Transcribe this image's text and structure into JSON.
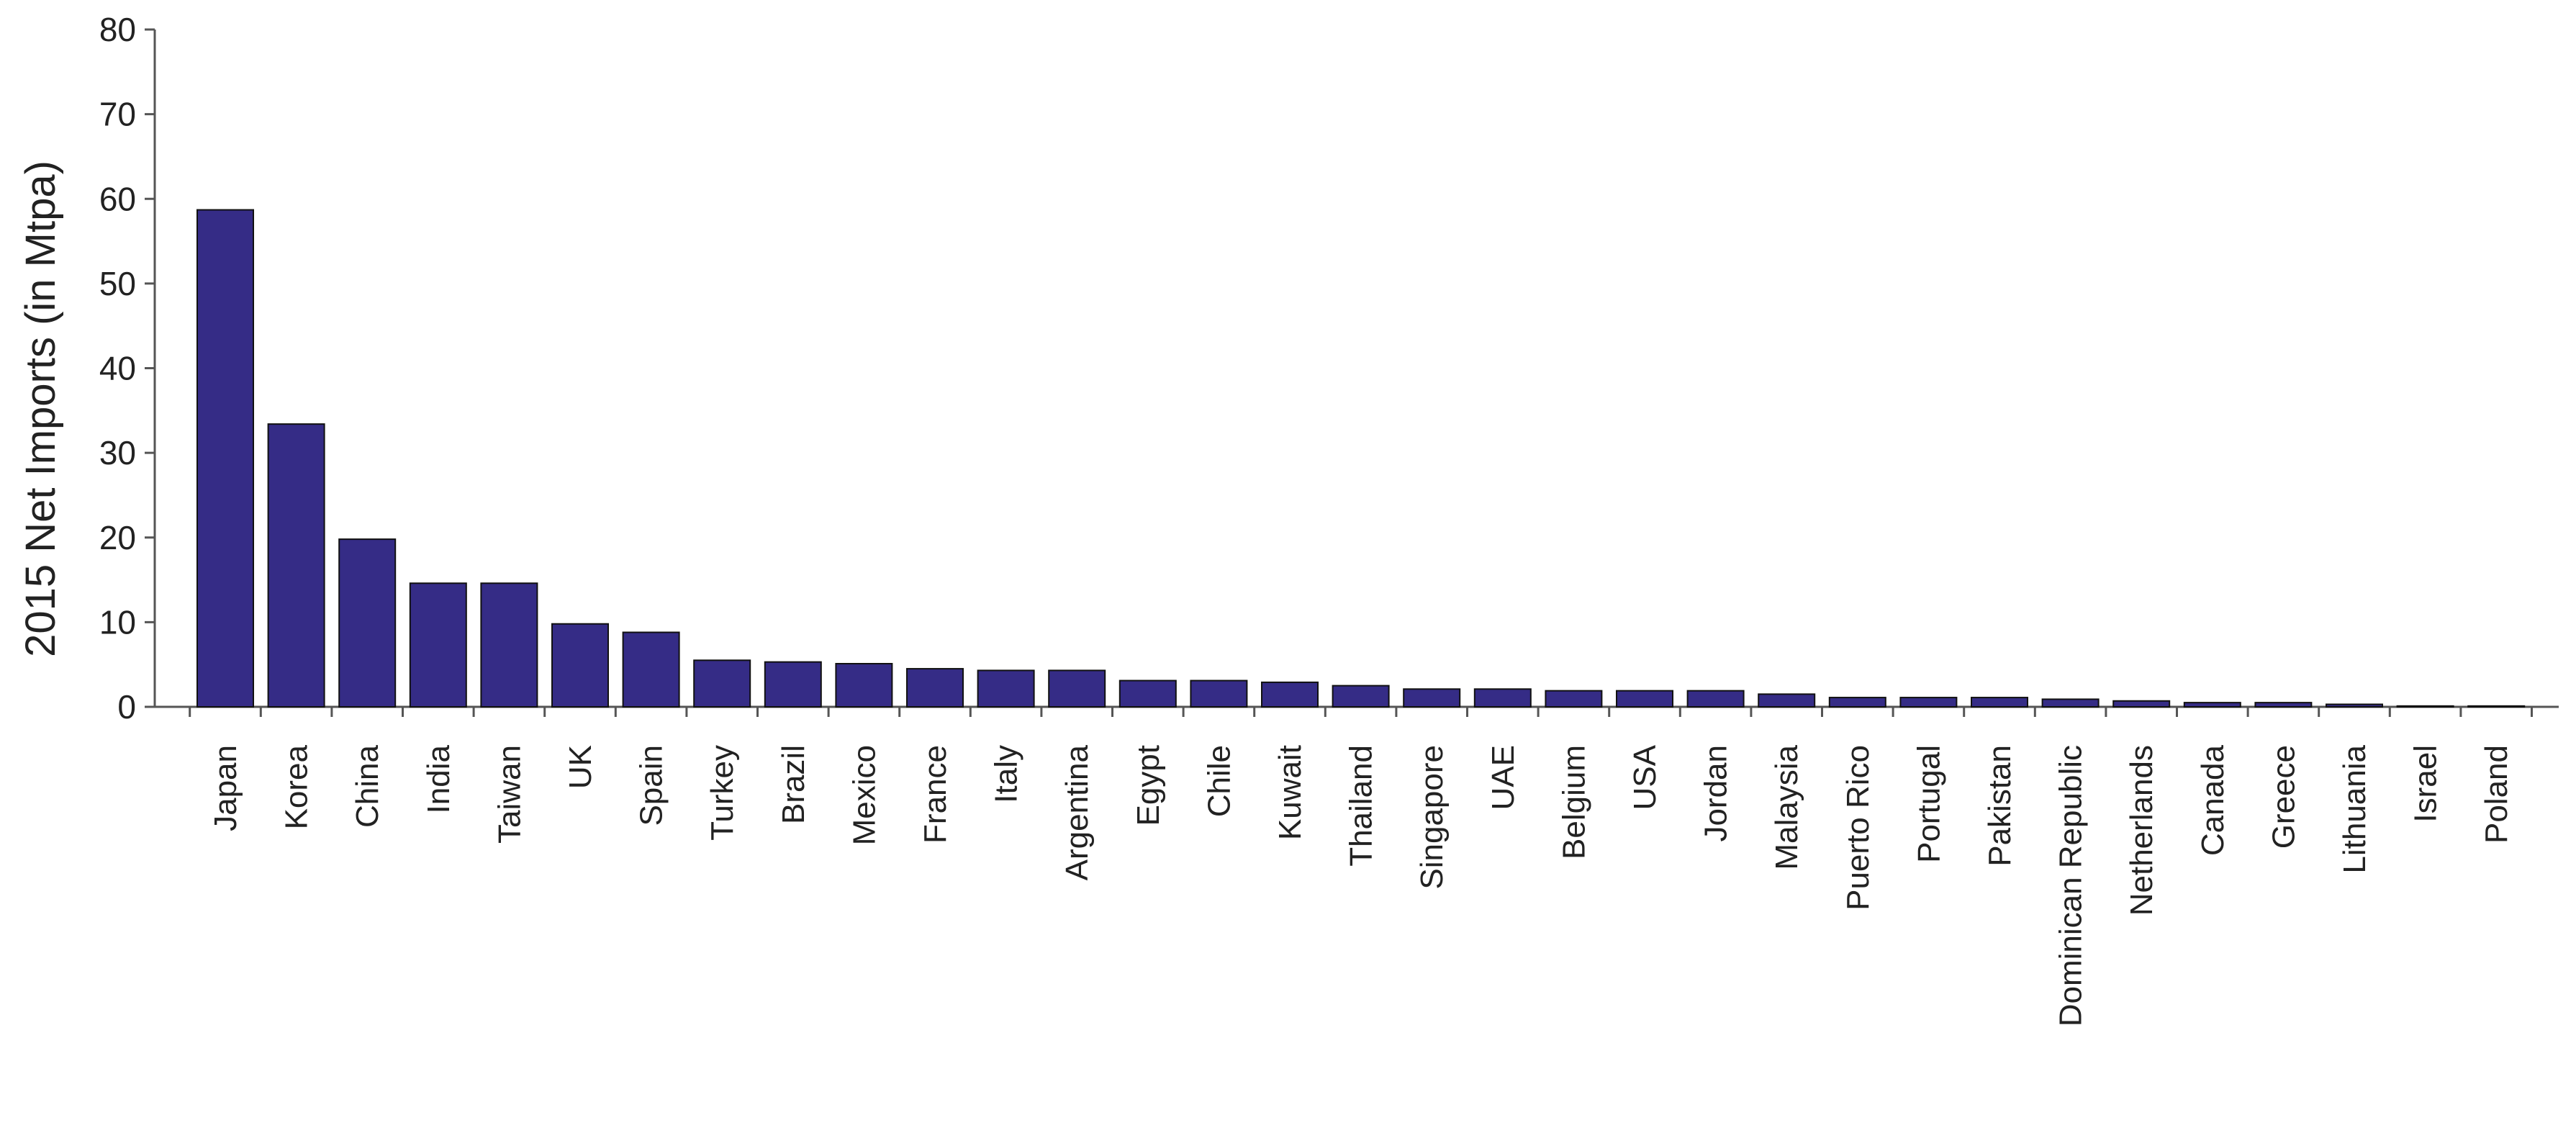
{
  "chart_data": {
    "type": "bar",
    "title": "",
    "xlabel": "",
    "ylabel": "2015 Net Imports (in  Mtpa)",
    "ylim": [
      0,
      80
    ],
    "yticks": [
      0,
      10,
      20,
      30,
      40,
      50,
      60,
      70,
      80
    ],
    "grid": false,
    "legend": "none",
    "bar_color": "#352C86",
    "categories": [
      "Japan",
      "Korea",
      "China",
      "India",
      "Taiwan",
      "UK",
      "Spain",
      "Turkey",
      "Brazil",
      "Mexico",
      "France",
      "Italy",
      "Argentina",
      "Egypt",
      "Chile",
      "Kuwait",
      "Thailand",
      "Singapore",
      "UAE",
      "Belgium",
      "USA",
      "Jordan",
      "Malaysia",
      "Puerto Rico",
      "Portugal",
      "Pakistan",
      "Dominican Republic",
      "Netherlands",
      "Canada",
      "Greece",
      "Lithuania",
      "Israel",
      "Poland"
    ],
    "values": [
      58.7,
      33.4,
      19.8,
      14.6,
      14.6,
      9.8,
      8.8,
      5.5,
      5.3,
      5.1,
      4.5,
      4.3,
      4.3,
      3.1,
      3.1,
      2.9,
      2.5,
      2.1,
      2.1,
      1.9,
      1.9,
      1.9,
      1.5,
      1.1,
      1.1,
      1.1,
      0.9,
      0.7,
      0.5,
      0.5,
      0.3,
      0.1,
      0.1
    ]
  }
}
